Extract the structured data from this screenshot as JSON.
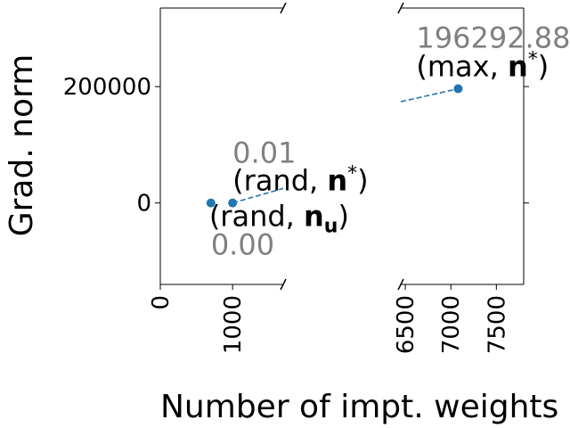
{
  "chart_data": {
    "type": "scatter",
    "xlabel": "Number of impt. weights",
    "ylabel": "Grad. norm",
    "broken_x_axis": true,
    "x_segments": [
      {
        "xlim": [
          0,
          1700
        ],
        "ticks": [
          0,
          1000
        ],
        "tick_labels": [
          "0",
          "1000"
        ]
      },
      {
        "xlim": [
          6450,
          7800
        ],
        "ticks": [
          6500,
          7000,
          7500
        ],
        "tick_labels": [
          "6500",
          "7000",
          "7500"
        ]
      }
    ],
    "ylim": [
      -140000,
      335000
    ],
    "yticks": [
      0,
      200000
    ],
    "ytick_labels": [
      "0",
      "200000"
    ],
    "grid": false,
    "color": "#1f77b4",
    "points": [
      {
        "x": 700,
        "y": 0,
        "label_main": "(rand, ",
        "label_bold": "n",
        "label_sub": "u",
        "label_sup": "",
        "label_close": ")",
        "value_label": "0.00"
      },
      {
        "x": 1000,
        "y": 0,
        "label_main": "(rand, ",
        "label_bold": "n",
        "label_sub": "",
        "label_sup": "*",
        "label_close": ")",
        "value_label": "0.01"
      },
      {
        "x": 7080,
        "y": 196292.88,
        "label_main": "(max, ",
        "label_bold": "n",
        "label_sub": "",
        "label_sup": "*",
        "label_close": ")",
        "value_label": "196292.88"
      }
    ],
    "trend_lines": [
      {
        "x": [
          1000,
          1700
        ],
        "y": [
          0,
          25000
        ]
      },
      {
        "x": [
          6450,
          7080
        ],
        "y": [
          174000,
          196292.88
        ]
      }
    ]
  }
}
